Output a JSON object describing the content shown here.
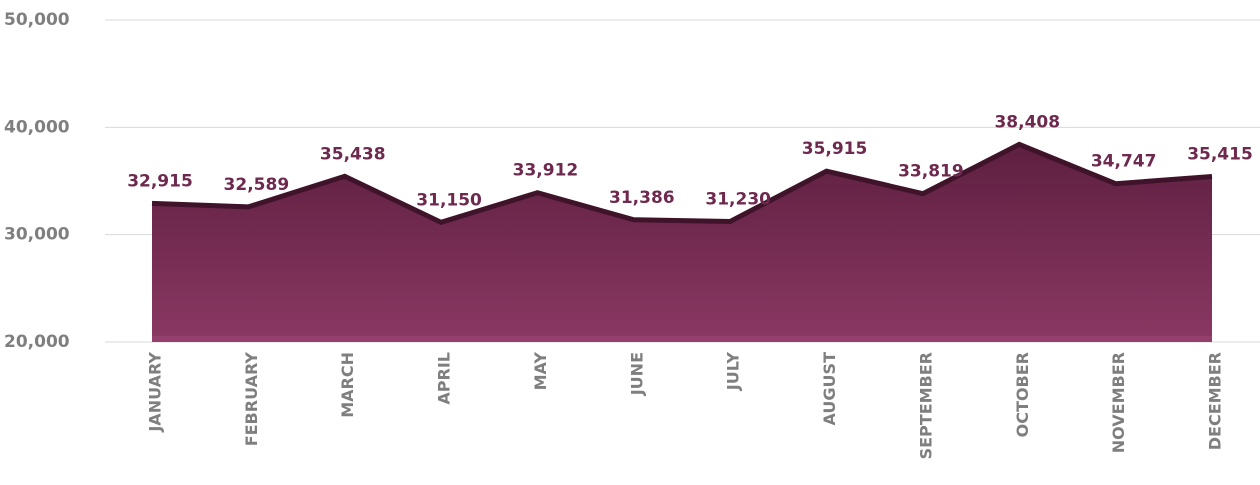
{
  "chart_data": {
    "type": "area",
    "categories": [
      "JANUARY",
      "FEBRUARY",
      "MARCH",
      "APRIL",
      "MAY",
      "JUNE",
      "JULY",
      "AUGUST",
      "SEPTEMBER",
      "OCTOBER",
      "NOVEMBER",
      "DECEMBER"
    ],
    "values": [
      32915,
      32589,
      35438,
      31150,
      33912,
      31386,
      31230,
      35915,
      33819,
      38408,
      34747,
      35415
    ],
    "value_labels": [
      "32,915",
      "32,589",
      "35,438",
      "31,150",
      "33,912",
      "31,386",
      "31,230",
      "35,915",
      "33,819",
      "38,408",
      "34,747",
      "35,415"
    ],
    "color": "#7b2d57",
    "ylim": [
      20000,
      50000
    ],
    "yticks": [
      {
        "value": 20000,
        "label": "20,000"
      },
      {
        "value": 30000,
        "label": "30,000"
      },
      {
        "value": 40000,
        "label": "40,000"
      },
      {
        "value": 50000,
        "label": "50,000"
      }
    ],
    "grid": true
  }
}
